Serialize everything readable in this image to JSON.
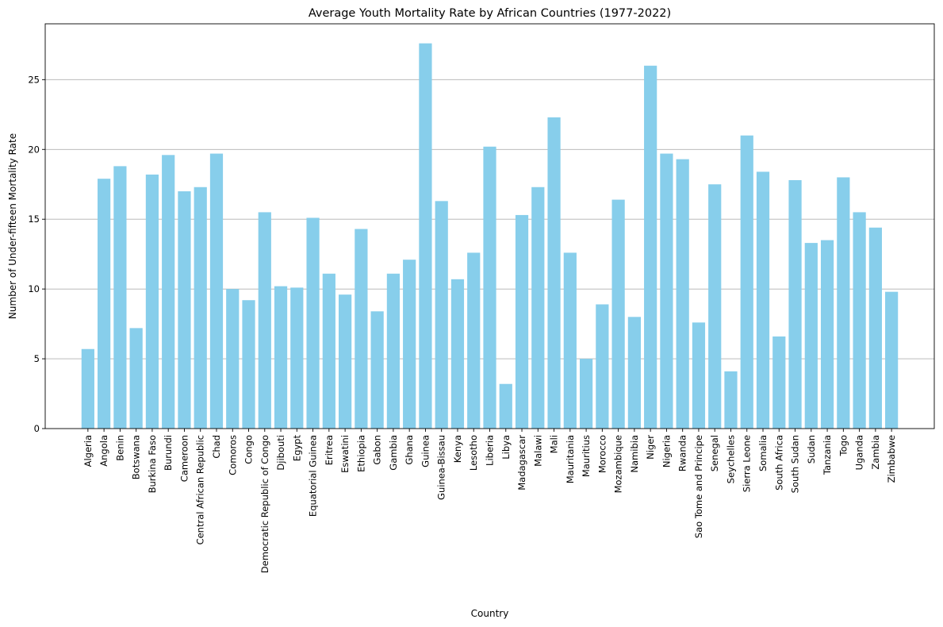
{
  "chart_data": {
    "type": "bar",
    "title": "Average Youth Mortality Rate by African Countries (1977-2022)",
    "xlabel": "Country",
    "ylabel": "Number of Under-fifteen Mortality Rate",
    "ylim": [
      0,
      29
    ],
    "yticks": [
      0,
      5,
      10,
      15,
      20,
      25
    ],
    "grid": "y",
    "bar_color": "#87ceeb",
    "categories": [
      "Algeria",
      "Angola",
      "Benin",
      "Botswana",
      "Burkina Faso",
      "Burundi",
      "Cameroon",
      "Central African Republic",
      "Chad",
      "Comoros",
      "Congo",
      "Democratic Republic of Congo",
      "Djibouti",
      "Egypt",
      "Equatorial Guinea",
      "Eritrea",
      "Eswatini",
      "Ethiopia",
      "Gabon",
      "Gambia",
      "Ghana",
      "Guinea",
      "Guinea-Bissau",
      "Kenya",
      "Lesotho",
      "Liberia",
      "Libya",
      "Madagascar",
      "Malawi",
      "Mali",
      "Mauritania",
      "Mauritius",
      "Morocco",
      "Mozambique",
      "Namibia",
      "Niger",
      "Nigeria",
      "Rwanda",
      "Sao Tome and Principe",
      "Senegal",
      "Seychelles",
      "Sierra Leone",
      "Somalia",
      "South Africa",
      "South Sudan",
      "Sudan",
      "Tanzania",
      "Togo",
      "Uganda",
      "Zambia",
      "Zimbabwe"
    ],
    "values": [
      5.7,
      17.9,
      18.8,
      7.2,
      18.2,
      19.6,
      17.0,
      17.3,
      19.7,
      10.0,
      9.2,
      15.5,
      10.2,
      10.1,
      15.1,
      11.1,
      9.6,
      14.3,
      8.4,
      11.1,
      12.1,
      27.6,
      16.3,
      10.7,
      12.6,
      20.2,
      3.2,
      15.3,
      17.3,
      22.3,
      12.6,
      5.0,
      8.9,
      16.4,
      8.0,
      26.0,
      19.7,
      19.3,
      7.6,
      17.5,
      4.1,
      21.0,
      18.4,
      6.6,
      17.8,
      13.3,
      13.5,
      18.0,
      15.5,
      14.4,
      9.8
    ]
  }
}
